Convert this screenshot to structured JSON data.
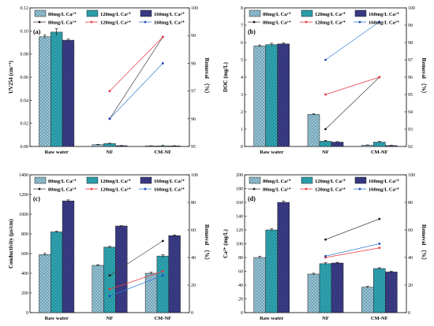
{
  "series_style": [
    {
      "fill": "#9ec8d8",
      "pattern": "cross",
      "line": "#444444",
      "marker": "#111111"
    },
    {
      "fill": "#2fa6b4",
      "pattern": "slash",
      "line": "#e8383d",
      "marker": "#e8383d"
    },
    {
      "fill": "#3d3f8c",
      "pattern": "backslash",
      "line": "#2f7fd4",
      "marker": "#1f3fc0"
    }
  ],
  "chart_data": [
    {
      "type": "bar",
      "panel_label": "(a)",
      "ylabel": "UV254 (cm⁻¹)",
      "y2label": "Removal （%）",
      "categories": [
        "Raw water",
        "NF",
        "CM-NF"
      ],
      "ylim": [
        0,
        0.12
      ],
      "yticks": [
        "0.00",
        "0.02",
        "0.04",
        "0.06",
        "0.08",
        "0.10",
        "0.12"
      ],
      "y2lim": [
        95,
        100
      ],
      "y2ticks": [
        "95",
        "96",
        "97",
        "98",
        "99",
        "100"
      ],
      "bar_legend": [
        "80mg/L Ca²⁺",
        "120mg/L Ca²⁺",
        "160mg/L Ca²⁺"
      ],
      "line_legend": [
        "80mg/L Ca²⁺",
        "120mg/L Ca²⁺",
        "160mg/L Ca²⁺"
      ],
      "series": [
        {
          "values": [
            0.095,
            0.0015,
            0.0005
          ],
          "errors": [
            0.0015,
            0.0003,
            0.0002
          ]
        },
        {
          "values": [
            0.099,
            0.0025,
            0.0005
          ],
          "errors": [
            0.003,
            0.0003,
            0.0002
          ]
        },
        {
          "values": [
            0.092,
            0.0007,
            0.0005
          ],
          "errors": [
            0.001,
            0.0002,
            0.0002
          ]
        }
      ],
      "removal_series": [
        {
          "values": [
            96.0,
            98.95
          ]
        },
        {
          "values": [
            97.0,
            98.95
          ]
        },
        {
          "values": [
            96.0,
            98.0
          ]
        }
      ]
    },
    {
      "type": "bar",
      "panel_label": "(b)",
      "ylabel": "DOC (mg/L)",
      "y2label": "Removal （%）",
      "categories": [
        "Raw water",
        "NF",
        "CM-NF"
      ],
      "ylim": [
        0,
        8
      ],
      "yticks": [
        "0",
        "1",
        "2",
        "3",
        "4",
        "5",
        "6",
        "7",
        "8"
      ],
      "y2lim": [
        92,
        100
      ],
      "y2ticks": [
        "92",
        "93",
        "94",
        "95",
        "96",
        "97",
        "98",
        "99",
        "100"
      ],
      "bar_legend": [
        "80mg/L Ca²⁺",
        "120mg/L Ca²⁺",
        "160mg/L Ca²⁺"
      ],
      "line_legend": [
        "80mg/L Ca²⁺",
        "120mg/L Ca²⁺",
        "160mg/L Ca²⁺"
      ],
      "series": [
        {
          "values": [
            5.8,
            1.85,
            0.07
          ],
          "errors": [
            0.06,
            0.04,
            0.02
          ]
        },
        {
          "values": [
            5.88,
            0.3,
            0.25
          ],
          "errors": [
            0.08,
            0.05,
            0.04
          ]
        },
        {
          "values": [
            5.92,
            0.25,
            0.05
          ],
          "errors": [
            0.06,
            0.03,
            0.02
          ]
        }
      ],
      "removal_series": [
        {
          "values": [
            93.0,
            96.0
          ]
        },
        {
          "values": [
            95.0,
            96.0
          ]
        },
        {
          "values": [
            97.0,
            99.2
          ]
        }
      ]
    },
    {
      "type": "bar",
      "panel_label": "(c)",
      "ylabel": "Conductivity (μs/cm)",
      "y2label": "Removal （%）",
      "categories": [
        "Raw water",
        "NF",
        "CM-NF"
      ],
      "ylim": [
        0,
        1400
      ],
      "yticks": [
        "0",
        "200",
        "400",
        "600",
        "800",
        "1000",
        "1200",
        "1400"
      ],
      "y2lim": [
        0,
        100
      ],
      "y2ticks": [
        "0",
        "20",
        "40",
        "60",
        "80",
        "100"
      ],
      "bar_legend": [
        "80mg/L Ca²⁺",
        "120mg/L Ca²⁺",
        "160mg/L Ca²⁺"
      ],
      "line_legend": [
        "80mg/L Ca²⁺",
        "120mg/L Ca²⁺",
        "160mg/L Ca²⁺"
      ],
      "series": [
        {
          "values": [
            590,
            480,
            400
          ],
          "errors": [
            12,
            6,
            10
          ]
        },
        {
          "values": [
            820,
            665,
            575
          ],
          "errors": [
            8,
            8,
            14
          ]
        },
        {
          "values": [
            1135,
            880,
            782
          ],
          "errors": [
            10,
            4,
            8
          ]
        }
      ],
      "removal_series": [
        {
          "values": [
            27.0,
            52.0
          ]
        },
        {
          "values": [
            17.0,
            30.0
          ]
        },
        {
          "values": [
            12.0,
            27.0
          ]
        }
      ]
    },
    {
      "type": "bar",
      "panel_label": "(d)",
      "ylabel": "Ca²⁺ (mg/L)",
      "y2label": "Removal （%）",
      "categories": [
        "Raw water",
        "NF",
        "CM-NF"
      ],
      "ylim": [
        0,
        200
      ],
      "yticks": [
        "0",
        "20",
        "40",
        "60",
        "80",
        "100",
        "120",
        "140",
        "160",
        "180",
        "200"
      ],
      "y2lim": [
        0,
        100
      ],
      "y2ticks": [
        "0",
        "20",
        "40",
        "60",
        "80",
        "100"
      ],
      "bar_legend": [
        "80mg/L Ca²⁺",
        "120mg/L Ca²⁺",
        "160mg/L Ca²⁺"
      ],
      "line_legend": [
        "80mg/L Ca²⁺",
        "120mg/L Ca²⁺",
        "160mg/L Ca²⁺"
      ],
      "series": [
        {
          "values": [
            80,
            56,
            37
          ],
          "errors": [
            1.5,
            1.2,
            1.0
          ]
        },
        {
          "values": [
            120,
            71,
            64
          ],
          "errors": [
            1.5,
            1.5,
            1.2
          ]
        },
        {
          "values": [
            160,
            72,
            59
          ],
          "errors": [
            2.0,
            1.0,
            1.2
          ]
        }
      ],
      "removal_series": [
        {
          "values": [
            53.0,
            68.0
          ]
        },
        {
          "values": [
            40.0,
            47.0
          ]
        },
        {
          "values": [
            41.0,
            50.0
          ]
        }
      ]
    }
  ]
}
